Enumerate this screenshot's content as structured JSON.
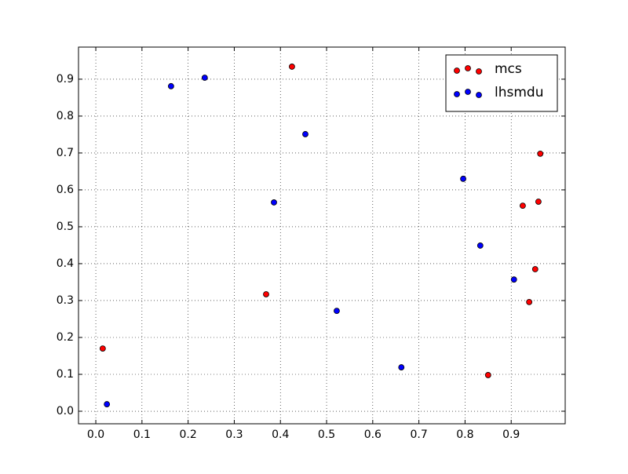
{
  "chart_data": {
    "type": "scatter",
    "series": [
      {
        "name": "mcs",
        "color": "#ff0000",
        "x": [
          0.015,
          0.369,
          0.425,
          0.85,
          0.925,
          0.939,
          0.952,
          0.959,
          0.963
        ],
        "values": [
          0.17,
          0.317,
          0.934,
          0.098,
          0.557,
          0.296,
          0.385,
          0.568,
          0.698
        ]
      },
      {
        "name": "lhsmdu",
        "color": "#0000ff",
        "x": [
          0.024,
          0.163,
          0.236,
          0.386,
          0.454,
          0.522,
          0.662,
          0.796,
          0.833,
          0.906
        ],
        "values": [
          0.019,
          0.881,
          0.904,
          0.566,
          0.751,
          0.272,
          0.119,
          0.63,
          0.449,
          0.357
        ]
      }
    ],
    "xlim": [
      -0.0375,
      1.017
    ],
    "ylim": [
      -0.034,
      0.987
    ],
    "xticks": [
      {
        "value": 0,
        "label": "0.0"
      },
      0.1,
      0.2,
      0.3,
      0.4,
      0.5,
      0.6,
      0.7,
      0.8,
      0.9
    ],
    "yticks": [
      {
        "value": 0,
        "label": "0.0"
      },
      0.1,
      0.2,
      0.3,
      0.4,
      0.5,
      0.6,
      0.7,
      0.8,
      0.9
    ],
    "grid": true,
    "legend": "upper right"
  }
}
